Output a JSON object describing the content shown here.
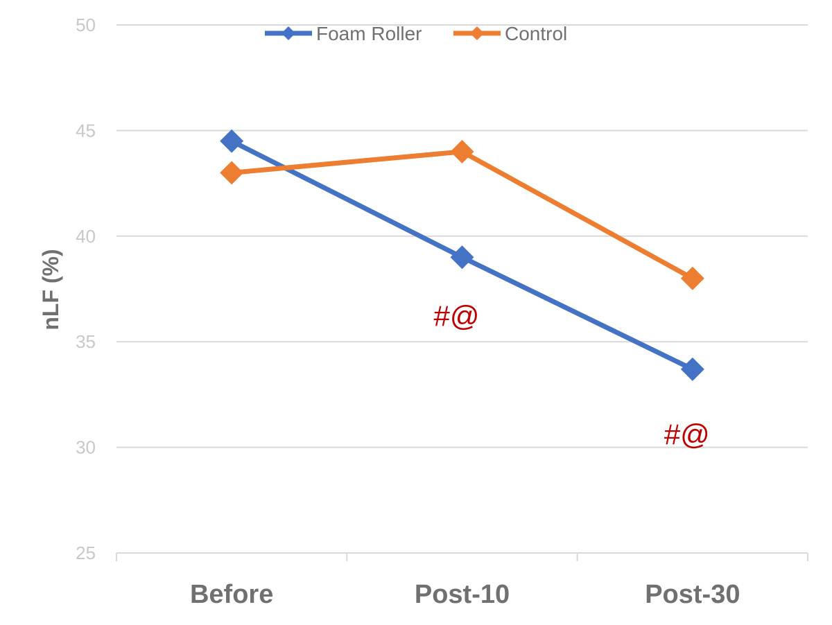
{
  "chart_data": {
    "type": "line",
    "categories": [
      "Before",
      "Post-10",
      "Post-30"
    ],
    "series": [
      {
        "name": "Foam Roller",
        "values": [
          44.5,
          39.0,
          33.7
        ],
        "color": "#4472c4",
        "marker": "diamond"
      },
      {
        "name": "Control",
        "values": [
          43.0,
          44.0,
          38.0
        ],
        "color": "#ed7d31",
        "marker": "diamond"
      }
    ],
    "ylabel": "nLF (%)",
    "xlabel": "",
    "ylim": [
      25,
      50
    ],
    "yticks": [
      25,
      30,
      35,
      40,
      45,
      50
    ],
    "grid": true,
    "legend_position": "top-center",
    "annotations": [
      {
        "text": "#@",
        "category": "Post-10",
        "y": 36.2,
        "color": "#c00000"
      },
      {
        "text": "#@",
        "category": "Post-30",
        "y": 30.6,
        "color": "#c00000"
      }
    ]
  }
}
